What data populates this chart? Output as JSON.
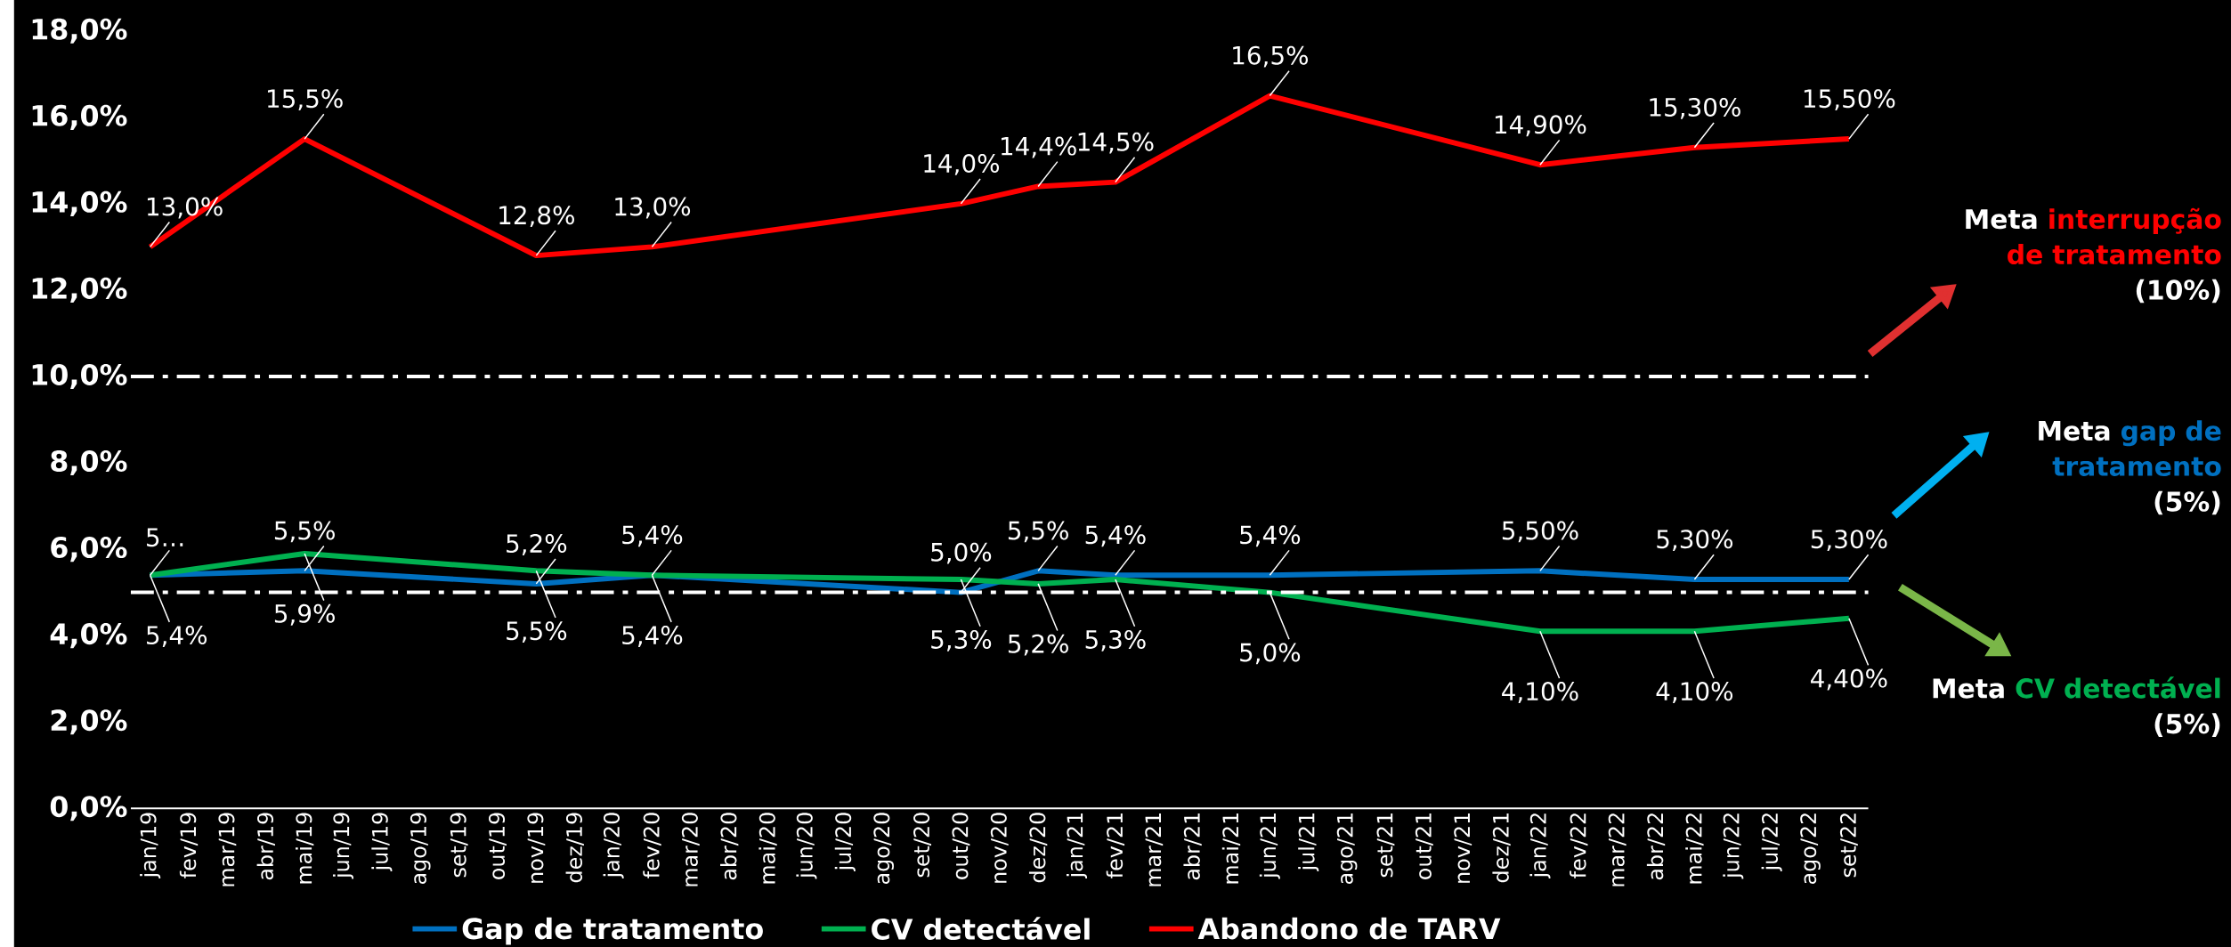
{
  "chart_data": {
    "type": "line",
    "categories": [
      "jan/19",
      "fev/19",
      "mar/19",
      "abr/19",
      "mai/19",
      "jun/19",
      "jul/19",
      "ago/19",
      "set/19",
      "out/19",
      "nov/19",
      "dez/19",
      "jan/20",
      "fev/20",
      "mar/20",
      "abr/20",
      "mai/20",
      "jun/20",
      "jul/20",
      "ago/20",
      "set/20",
      "out/20",
      "nov/20",
      "dez/20",
      "jan/21",
      "fev/21",
      "mar/21",
      "abr/21",
      "mai/21",
      "jun/21",
      "jul/21",
      "ago/21",
      "set/21",
      "out/21",
      "nov/21",
      "dez/21",
      "jan/22",
      "fev/22",
      "mar/22",
      "abr/22",
      "mai/22",
      "jun/22",
      "jul/22",
      "ago/22",
      "set/22"
    ],
    "series": [
      {
        "name": "Gap de tratamento",
        "color": "#0070c0",
        "values": [
          5.4,
          null,
          null,
          null,
          5.5,
          null,
          null,
          null,
          null,
          null,
          5.2,
          null,
          null,
          5.4,
          null,
          null,
          null,
          null,
          null,
          null,
          null,
          5.0,
          null,
          5.5,
          null,
          5.4,
          null,
          null,
          null,
          5.4,
          null,
          null,
          null,
          null,
          null,
          null,
          5.5,
          null,
          null,
          null,
          5.3,
          null,
          null,
          null,
          5.3
        ],
        "value_labels": [
          "5…",
          null,
          null,
          null,
          "5,5%",
          null,
          null,
          null,
          null,
          null,
          "5,2%",
          null,
          null,
          "5,4%",
          null,
          null,
          null,
          null,
          null,
          null,
          null,
          "5,0%",
          null,
          "5,5%",
          null,
          "5,4%",
          null,
          null,
          null,
          "5,4%",
          null,
          null,
          null,
          null,
          null,
          null,
          "5,50%",
          null,
          null,
          null,
          "5,30%",
          null,
          null,
          null,
          "5,30%"
        ]
      },
      {
        "name": "CV detectável",
        "color": "#00b050",
        "values": [
          5.4,
          null,
          null,
          null,
          5.9,
          null,
          null,
          null,
          null,
          null,
          5.5,
          null,
          null,
          5.4,
          null,
          null,
          null,
          null,
          null,
          null,
          null,
          5.3,
          null,
          5.2,
          null,
          5.3,
          null,
          null,
          null,
          5.0,
          null,
          null,
          null,
          null,
          null,
          null,
          4.1,
          null,
          null,
          null,
          4.1,
          null,
          null,
          null,
          4.4
        ],
        "value_labels": [
          "5,4%",
          null,
          null,
          null,
          "5,9%",
          null,
          null,
          null,
          null,
          null,
          "5,5%",
          null,
          null,
          "5,4%",
          null,
          null,
          null,
          null,
          null,
          null,
          null,
          "5,3%",
          null,
          "5,2%",
          null,
          "5,3%",
          null,
          null,
          null,
          "5,0%",
          null,
          null,
          null,
          null,
          null,
          null,
          "4,10%",
          null,
          null,
          null,
          "4,10%",
          null,
          null,
          null,
          "4,40%"
        ]
      },
      {
        "name": "Abandono de TARV",
        "color": "#ff0000",
        "values": [
          13.0,
          null,
          null,
          null,
          15.5,
          null,
          null,
          null,
          null,
          null,
          12.8,
          null,
          null,
          13.0,
          null,
          null,
          null,
          null,
          null,
          null,
          null,
          14.0,
          null,
          14.4,
          null,
          14.5,
          null,
          null,
          null,
          16.5,
          null,
          null,
          null,
          null,
          null,
          null,
          14.9,
          null,
          null,
          null,
          15.3,
          null,
          null,
          null,
          15.5
        ],
        "value_labels": [
          "13,0%",
          null,
          null,
          null,
          "15,5%",
          null,
          null,
          null,
          null,
          null,
          "12,8%",
          null,
          null,
          "13,0%",
          null,
          null,
          null,
          null,
          null,
          null,
          null,
          "14,0%",
          null,
          "14,4%",
          null,
          "14,5%",
          null,
          null,
          null,
          "16,5%",
          null,
          null,
          null,
          null,
          null,
          null,
          "14,90%",
          null,
          null,
          null,
          "15,30%",
          null,
          null,
          null,
          "15,50%"
        ]
      }
    ],
    "ylim": [
      0,
      18
    ],
    "yticks": [
      {
        "value": 0,
        "label": "0,0%"
      },
      {
        "value": 2,
        "label": "2,0%"
      },
      {
        "value": 4,
        "label": "4,0%"
      },
      {
        "value": 6,
        "label": "6,0%"
      },
      {
        "value": 8,
        "label": "8,0%"
      },
      {
        "value": 10,
        "label": "10,0%"
      },
      {
        "value": 12,
        "label": "12,0%"
      },
      {
        "value": 14,
        "label": "14,0%"
      },
      {
        "value": 16,
        "label": "16,0%"
      },
      {
        "value": 18,
        "label": "18,0%"
      }
    ],
    "ref_lines": [
      {
        "axis": "y",
        "value": 10,
        "color": "#ffffff"
      },
      {
        "axis": "y",
        "value": 5,
        "color": "#ffffff"
      }
    ],
    "legend": "bottom",
    "annotations": [
      "Meta",
      "interrupção de tratamento",
      "(10%)",
      "Meta",
      "gap de tratamento",
      "(5%)",
      "Meta",
      "CV detectável",
      "(5%)"
    ]
  }
}
